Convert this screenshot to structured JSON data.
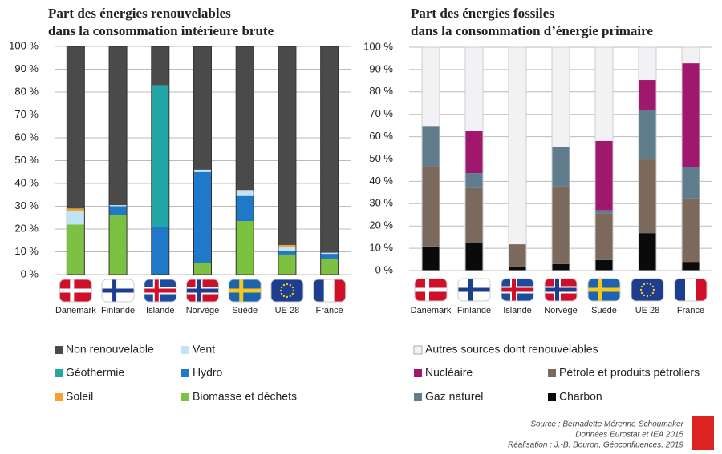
{
  "chart_data": [
    {
      "type": "stacked-bar",
      "title": [
        "Part des énergies renouvelables",
        "dans la consommation intérieure brute"
      ],
      "categories": [
        "Danemark",
        "Finlande",
        "Islande",
        "Norvège",
        "Suède",
        "UE 28",
        "France"
      ],
      "series": [
        {
          "name": "Biomasse et déchets",
          "color": "#7dc142",
          "values": [
            22,
            26,
            0,
            5,
            23.5,
            8.8,
            6.7
          ]
        },
        {
          "name": "Hydro",
          "color": "#1f78c8",
          "values": [
            0,
            4,
            21,
            40,
            11,
            1.7,
            2.4
          ]
        },
        {
          "name": "Géothermie",
          "color": "#22a6a6",
          "values": [
            0,
            0,
            62,
            0,
            0,
            0,
            0
          ]
        },
        {
          "name": "Vent",
          "color": "#bfe4f5",
          "values": [
            6,
            0.5,
            0,
            1,
            2.6,
            1.8,
            0.5
          ]
        },
        {
          "name": "Soleil",
          "color": "#f5a030",
          "values": [
            1,
            0,
            0,
            0,
            0,
            0.7,
            0
          ]
        },
        {
          "name": "Non renouvelable",
          "color": "#4a4a4a",
          "values": [
            71,
            69.5,
            17,
            54,
            62.9,
            87,
            90.4
          ]
        }
      ],
      "ylim": [
        0,
        100
      ],
      "yticks": [
        {
          "value": 0,
          "label": "0 %"
        },
        {
          "value": 10,
          "label": "10 %"
        },
        {
          "value": 20,
          "label": "20 %"
        },
        {
          "value": 30,
          "label": "30 %"
        },
        {
          "value": 40,
          "label": "40 %"
        },
        {
          "value": 50,
          "label": "50 %"
        },
        {
          "value": 60,
          "label": "60 %"
        },
        {
          "value": 70,
          "label": "70 %"
        },
        {
          "value": 80,
          "label": "80 %"
        },
        {
          "value": 90,
          "label": "90 %"
        },
        {
          "value": 100,
          "label": "100 %"
        }
      ],
      "grid": true
    },
    {
      "type": "stacked-bar",
      "title": [
        "Part des énergies fossiles",
        "dans la consommation d’énergie primaire"
      ],
      "categories": [
        "Danemark",
        "Finlande",
        "Islande",
        "Norvège",
        "Suède",
        "UE 28",
        "France"
      ],
      "series": [
        {
          "name": "Charbon",
          "color": "#0a0a0a",
          "values": [
            10.8,
            12.5,
            1.8,
            2.9,
            4.7,
            16.8,
            3.9
          ]
        },
        {
          "name": "Pétrole et produits pétroliers",
          "color": "#7b6a5c",
          "values": [
            36,
            24.5,
            10,
            35,
            21,
            33,
            28.4
          ]
        },
        {
          "name": "Gaz naturel",
          "color": "#5f7d8c",
          "values": [
            18,
            6.7,
            0,
            17.6,
            1.4,
            22.2,
            14.3
          ]
        },
        {
          "name": "Nucléaire",
          "color": "#a0186e",
          "values": [
            0,
            18.7,
            0,
            0,
            31,
            13.3,
            46.2
          ]
        },
        {
          "name": "Autres sources dont renouvelables",
          "color": "#f2f2f4",
          "values": [
            35.2,
            37.6,
            88.2,
            44.5,
            41.9,
            14.7,
            7.2
          ]
        }
      ],
      "ylim": [
        0,
        100
      ],
      "yticks": [
        {
          "value": 0,
          "label": "0 %"
        },
        {
          "value": 10,
          "label": "10 %"
        },
        {
          "value": 20,
          "label": "20 %"
        },
        {
          "value": 30,
          "label": "30 %"
        },
        {
          "value": 40,
          "label": "40 %"
        },
        {
          "value": 50,
          "label": "50 %"
        },
        {
          "value": 60,
          "label": "60 %"
        },
        {
          "value": 70,
          "label": "70 %"
        },
        {
          "value": 80,
          "label": "80 %"
        },
        {
          "value": 90,
          "label": "90 %"
        },
        {
          "value": 100,
          "label": "100 %"
        }
      ],
      "grid": true
    }
  ],
  "source": [
    "Source : Bernadette Mérenne-Schoumaker",
    "Données Eurostat et IEA 2015",
    "Réalisation : J.-B. Bouron, Géoconfluences, 2019"
  ]
}
